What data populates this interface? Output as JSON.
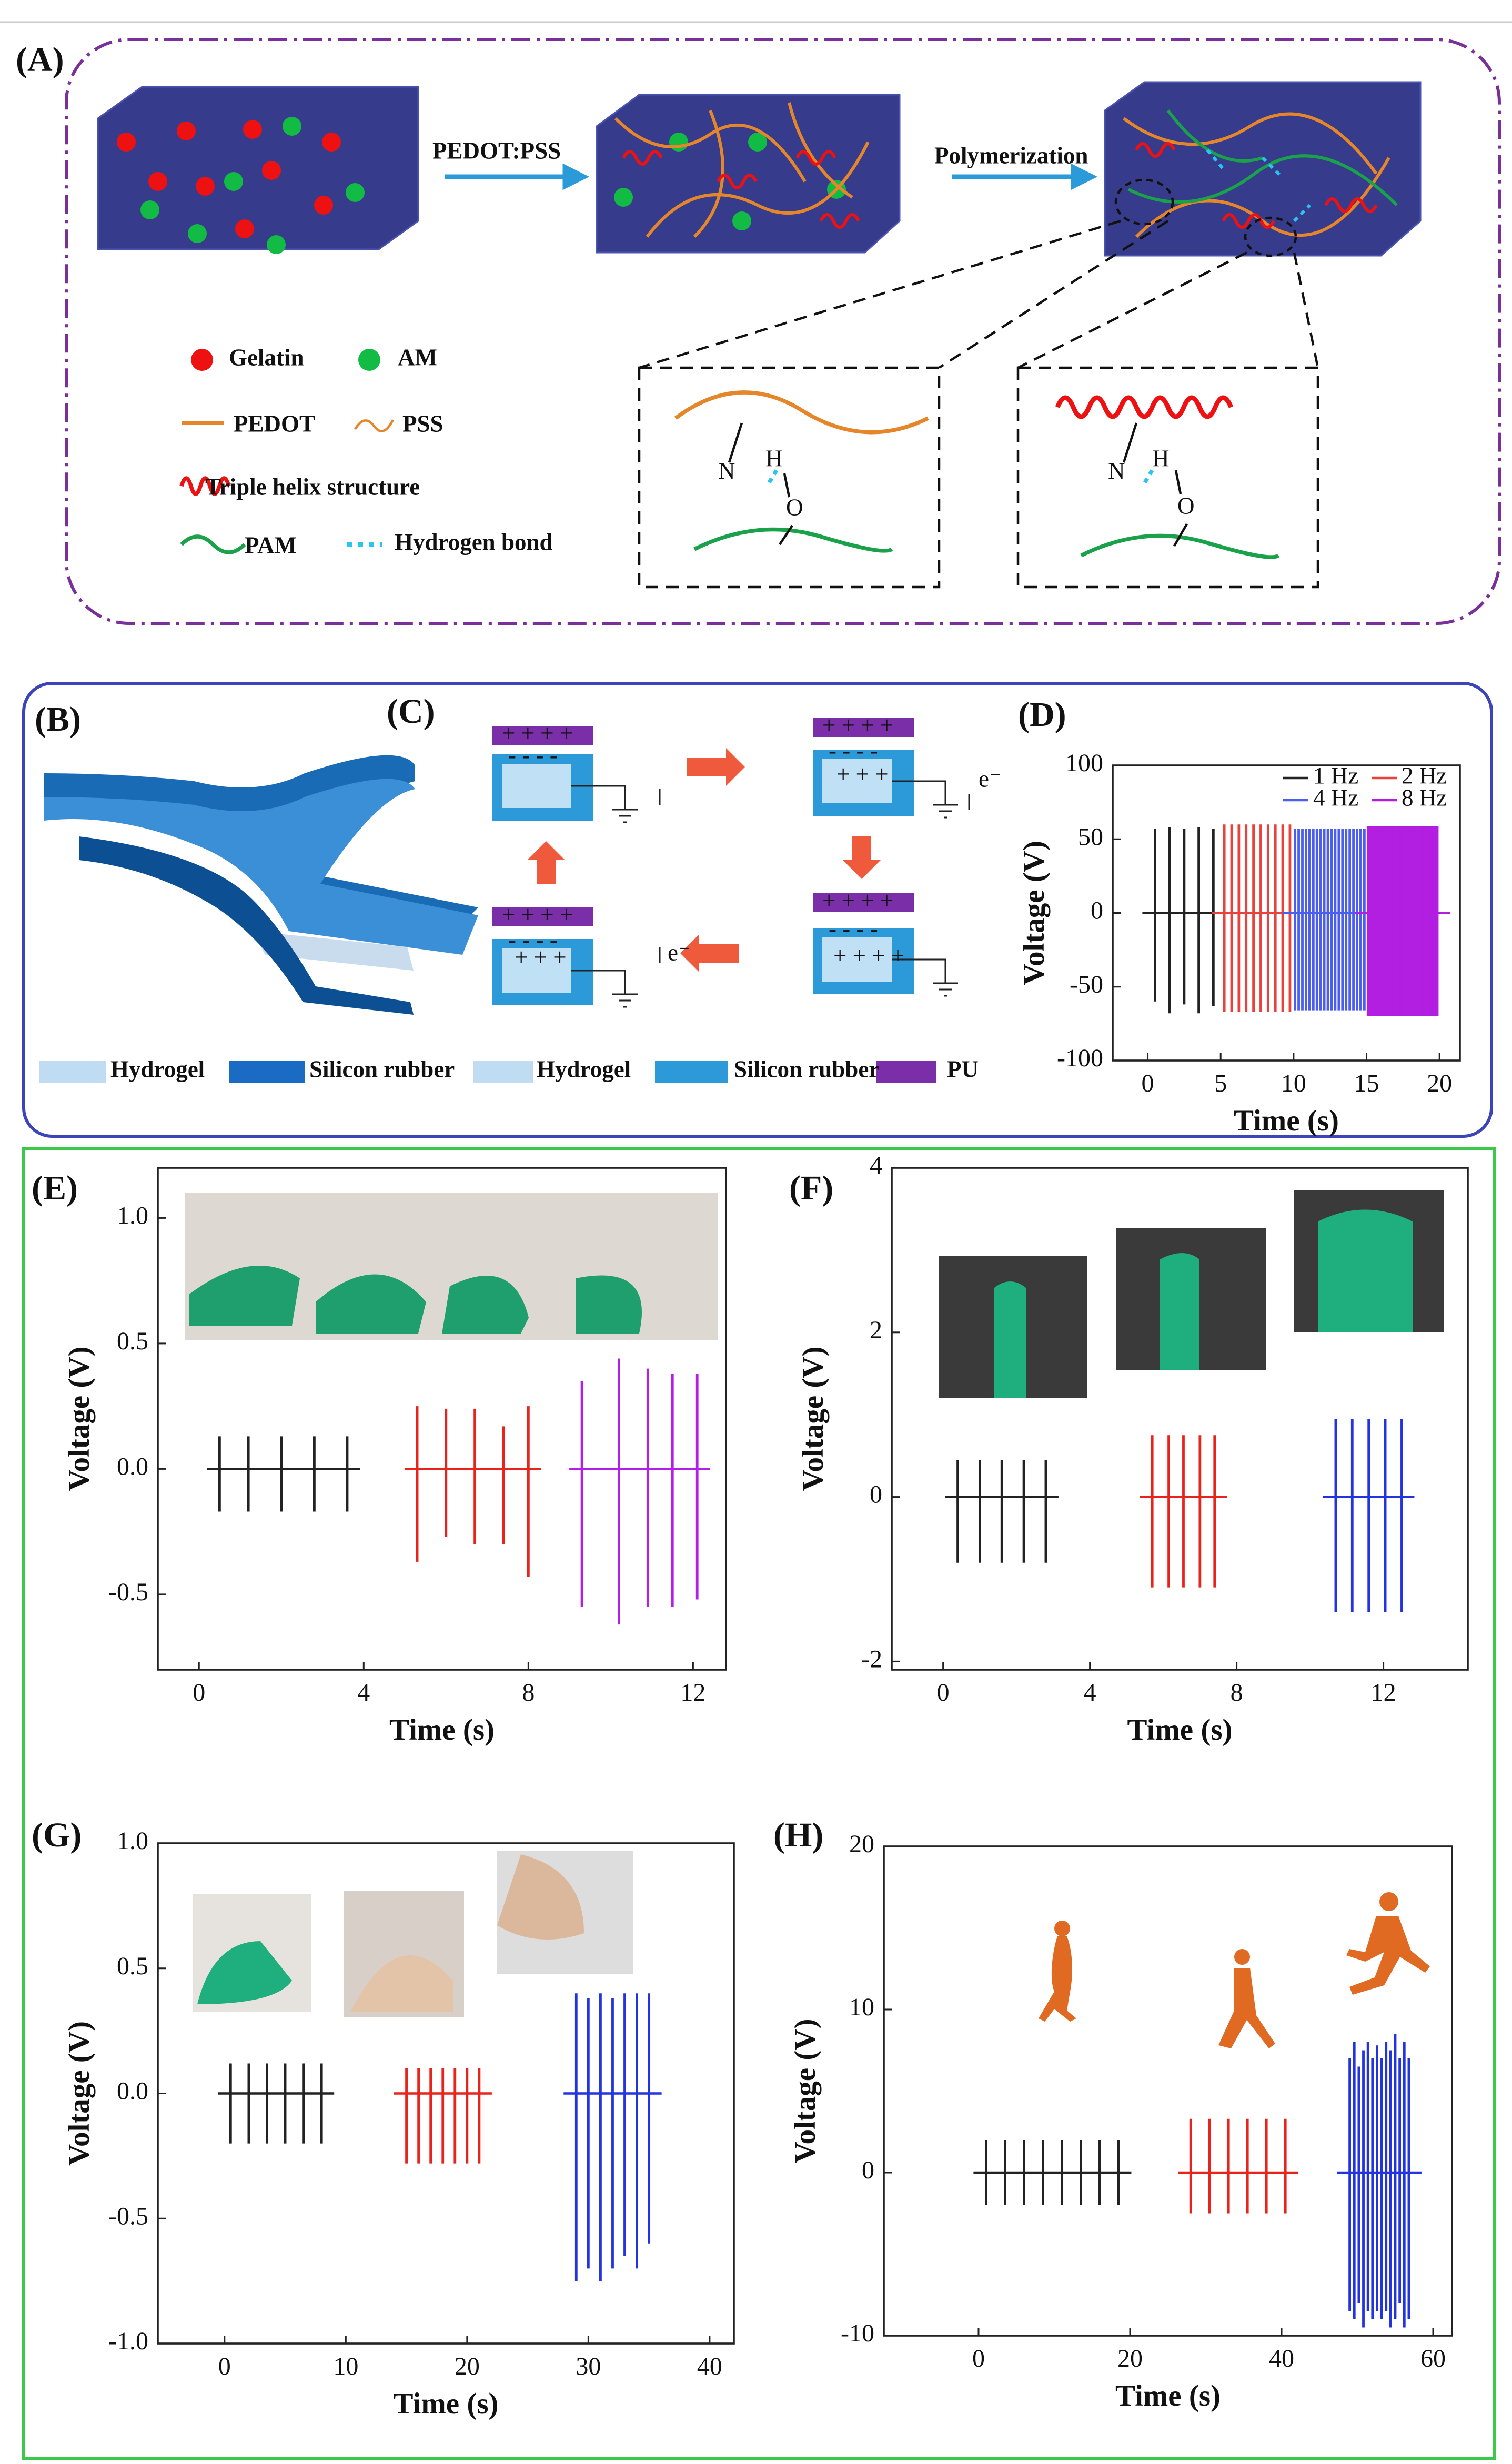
{
  "panel_a": {
    "label": "(A)",
    "arrows": [
      "PEDOT:PSS",
      "Polymerization"
    ],
    "legend": [
      "Gelatin",
      "AM",
      "PEDOT",
      "PSS",
      "Triple helix structure",
      "PAM",
      "Hydrogen bond"
    ],
    "box1": [
      "N",
      "H",
      "O"
    ],
    "box2": [
      "N",
      "H",
      "O"
    ]
  },
  "panel_b": {
    "label": "(B)",
    "legend": [
      "Hydrogel",
      "Silicon rubber"
    ]
  },
  "panel_c": {
    "label": "(C)",
    "plus4": "+ + + +",
    "plus3": "+ + +",
    "minus": "- - - -",
    "electron": "e⁻",
    "legend": [
      "Hydrogel",
      "Silicon rubber",
      "PU"
    ]
  },
  "chart_data": [
    {
      "type": "spikes",
      "label": "(D)",
      "xlabel": "Time (s)",
      "ylabel": "Voltage (V)",
      "xlim": [
        -2.4,
        21.4
      ],
      "ylim": [
        -100,
        100
      ],
      "xticks": [
        0,
        5,
        10,
        15,
        20
      ],
      "yticks": [
        -100,
        -50,
        0,
        50,
        100
      ],
      "legend": "upper right",
      "series": [
        {
          "name": "1 Hz",
          "color": "#222222",
          "x": [
            0.5,
            1.5,
            2.5,
            3.5,
            4.5
          ],
          "values": [
            57,
            58,
            57,
            58,
            57
          ],
          "min": [
            -60,
            -68,
            -62,
            -68,
            -63
          ]
        },
        {
          "name": "2 Hz",
          "color": "#e8423c",
          "x": [
            5.25,
            5.75,
            6.25,
            6.75,
            7.25,
            7.75,
            8.25,
            8.75,
            9.25,
            9.75
          ],
          "values": [
            60,
            60,
            60,
            60,
            60,
            60,
            60,
            60,
            60,
            60
          ],
          "min": [
            -67,
            -67,
            -67,
            -67,
            -67,
            -67,
            -67,
            -67,
            -67,
            -67
          ]
        },
        {
          "name": "4 Hz",
          "color": "#4b5ef0",
          "x": [
            10.1,
            10.35,
            10.6,
            10.85,
            11.1,
            11.35,
            11.6,
            11.85,
            12.1,
            12.35,
            12.6,
            12.85,
            13.1,
            13.35,
            13.6,
            13.85,
            14.1,
            14.35,
            14.6,
            14.85
          ],
          "values": [
            57,
            57,
            57,
            57,
            57,
            57,
            57,
            57,
            57,
            57,
            57,
            57,
            57,
            57,
            57,
            57,
            57,
            57,
            57,
            57
          ],
          "min": [
            -66,
            -66,
            -66,
            -66,
            -66,
            -66,
            -66,
            -66,
            -66,
            -66,
            -66,
            -66,
            -66,
            -66,
            -66,
            -66,
            -66,
            -66,
            -66,
            -66
          ]
        },
        {
          "name": "8 Hz",
          "color": "#b21fe0",
          "x": [
            15.1,
            15.225,
            15.35,
            15.475,
            15.6,
            15.725,
            15.85,
            15.975,
            16.1,
            16.225,
            16.35,
            16.475,
            16.6,
            16.725,
            16.85,
            16.975,
            17.1,
            17.225,
            17.35,
            17.475,
            17.6,
            17.725,
            17.85,
            17.975,
            18.1,
            18.225,
            18.35,
            18.475,
            18.6,
            18.725,
            18.85,
            18.975,
            19.1,
            19.225,
            19.35,
            19.475,
            19.6,
            19.725,
            19.85
          ],
          "values": [
            59,
            59,
            59,
            59,
            59,
            59,
            59,
            59,
            59,
            59,
            59,
            59,
            59,
            59,
            59,
            59,
            59,
            59,
            59,
            59,
            59,
            59,
            59,
            59,
            59,
            59,
            59,
            59,
            59,
            59,
            59,
            59,
            59,
            59,
            59,
            59,
            59,
            59,
            59
          ],
          "min": [
            -70,
            -70,
            -70,
            -70,
            -70,
            -70,
            -70,
            -70,
            -70,
            -70,
            -70,
            -70,
            -70,
            -70,
            -70,
            -70,
            -70,
            -70,
            -70,
            -70,
            -70,
            -70,
            -70,
            -70,
            -70,
            -70,
            -70,
            -70,
            -70,
            -70,
            -70,
            -70,
            -70,
            -70,
            -70,
            -70,
            -70,
            -70,
            -70
          ]
        }
      ]
    },
    {
      "type": "spikes",
      "label": "(E)",
      "xlabel": "Time (s)",
      "ylabel": "Voltage (V)",
      "xlim": [
        -1,
        12.8
      ],
      "ylim": [
        -0.8,
        1.2
      ],
      "xticks": [
        0,
        4,
        8,
        12
      ],
      "yticks": [
        -0.5,
        {
          "value": 0,
          "label": "0.0"
        },
        0.5,
        {
          "value": 1,
          "label": "1.0"
        }
      ],
      "series": [
        {
          "color": "#222222",
          "x": [
            0.5,
            1.2,
            2,
            2.8,
            3.6
          ],
          "values": [
            0.13,
            0.13,
            0.13,
            0.13,
            0.13
          ],
          "min": [
            -0.17,
            -0.17,
            -0.17,
            -0.17,
            -0.17
          ]
        },
        {
          "color": "#e8231c",
          "x": [
            5.3,
            6,
            6.7,
            7.4,
            8
          ],
          "values": [
            0.25,
            0.24,
            0.24,
            0.17,
            0.25
          ],
          "min": [
            -0.37,
            -0.27,
            -0.3,
            -0.3,
            -0.43
          ]
        },
        {
          "color": "#b31fe8",
          "x": [
            9.3,
            10.2,
            10.9,
            11.5,
            12.1
          ],
          "values": [
            0.35,
            0.44,
            0.4,
            0.38,
            0.38
          ],
          "min": [
            -0.55,
            -0.62,
            -0.55,
            -0.55,
            -0.52
          ]
        }
      ]
    },
    {
      "type": "spikes",
      "label": "(F)",
      "xlabel": "Time (s)",
      "ylabel": "Voltage (V)",
      "xlim": [
        -1.4,
        14.3
      ],
      "ylim": [
        -2.1,
        4
      ],
      "xticks": [
        0,
        4,
        8,
        12
      ],
      "yticks": [
        -2,
        0,
        2,
        4
      ],
      "series": [
        {
          "color": "#222222",
          "x": [
            0.4,
            1,
            1.6,
            2.2,
            2.8
          ],
          "values": [
            0.45,
            0.45,
            0.45,
            0.45,
            0.45
          ],
          "min": [
            -0.8,
            -0.8,
            -0.8,
            -0.8,
            -0.8
          ]
        },
        {
          "color": "#e8231c",
          "x": [
            5.7,
            6.15,
            6.55,
            7,
            7.4
          ],
          "values": [
            0.75,
            0.75,
            0.75,
            0.75,
            0.75
          ],
          "min": [
            -1.1,
            -1.1,
            -1.1,
            -1.1,
            -1.1
          ]
        },
        {
          "color": "#2233e0",
          "x": [
            10.7,
            11.15,
            11.6,
            12.05,
            12.5
          ],
          "values": [
            0.95,
            0.95,
            0.95,
            0.95,
            0.95
          ],
          "min": [
            -1.4,
            -1.4,
            -1.4,
            -1.4,
            -1.4
          ]
        }
      ]
    },
    {
      "type": "spikes",
      "label": "(G)",
      "xlabel": "Time (s)",
      "ylabel": "Voltage (V)",
      "xlim": [
        -5.5,
        42
      ],
      "ylim": [
        -1,
        1
      ],
      "xticks": [
        0,
        10,
        20,
        30,
        40
      ],
      "yticks": [
        {
          "value": -1,
          "label": "-1.0"
        },
        -0.5,
        {
          "value": 0,
          "label": "0.0"
        },
        0.5,
        {
          "value": 1,
          "label": "1.0"
        }
      ],
      "series": [
        {
          "color": "#222222",
          "x": [
            0.5,
            2,
            3.5,
            5,
            6.5,
            8
          ],
          "values": [
            0.12,
            0.12,
            0.12,
            0.12,
            0.12,
            0.12
          ],
          "min": [
            -0.2,
            -0.2,
            -0.2,
            -0.2,
            -0.2,
            -0.2
          ]
        },
        {
          "color": "#e8231c",
          "x": [
            15,
            16,
            17,
            18,
            19,
            20,
            21
          ],
          "values": [
            0.1,
            0.1,
            0.1,
            0.1,
            0.1,
            0.1,
            0.1
          ],
          "min": [
            -0.28,
            -0.28,
            -0.28,
            -0.28,
            -0.28,
            -0.28,
            -0.28
          ]
        },
        {
          "color": "#2233e0",
          "x": [
            29,
            30,
            31,
            32,
            33,
            34,
            35
          ],
          "values": [
            0.4,
            0.38,
            0.4,
            0.38,
            0.4,
            0.4,
            0.4
          ],
          "min": [
            -0.75,
            -0.7,
            -0.75,
            -0.7,
            -0.65,
            -0.7,
            -0.6
          ]
        }
      ]
    },
    {
      "type": "spikes",
      "label": "(H)",
      "xlabel": "Time (s)",
      "ylabel": "Voltage (V)",
      "xlim": [
        -12.5,
        62.5
      ],
      "ylim": [
        -10,
        20
      ],
      "xticks": [
        0,
        20,
        40,
        60
      ],
      "yticks": [
        -10,
        0,
        10,
        20
      ],
      "series": [
        {
          "color": "#222222",
          "x": [
            1,
            3.5,
            6,
            8.5,
            11,
            13.5,
            16,
            18.5
          ],
          "values": [
            2,
            2,
            2,
            2,
            2,
            2,
            2,
            2
          ],
          "min": [
            -2,
            -2,
            -2,
            -2,
            -2,
            -2,
            -2,
            -2
          ]
        },
        {
          "color": "#e8231c",
          "x": [
            28,
            30.5,
            33,
            35.5,
            38,
            40.5
          ],
          "values": [
            3.3,
            3.3,
            3.3,
            3.3,
            3.3,
            3.3
          ],
          "min": [
            -2.5,
            -2.5,
            -2.5,
            -2.5,
            -2.5,
            -2.5
          ]
        },
        {
          "color": "#2233e0",
          "x": [
            49,
            49.6,
            50.2,
            50.8,
            51.4,
            52,
            52.6,
            53.2,
            53.8,
            54.4,
            55,
            55.6,
            56.2,
            56.8
          ],
          "values": [
            7,
            8,
            6.5,
            7.5,
            8,
            7,
            7.8,
            7,
            8,
            7.5,
            8.5,
            7,
            8,
            7
          ],
          "min": [
            -8.5,
            -9,
            -8,
            -9.5,
            -8.5,
            -9,
            -8.5,
            -9,
            -8.5,
            -9.5,
            -9,
            -8,
            -9.5,
            -9
          ]
        }
      ]
    }
  ]
}
